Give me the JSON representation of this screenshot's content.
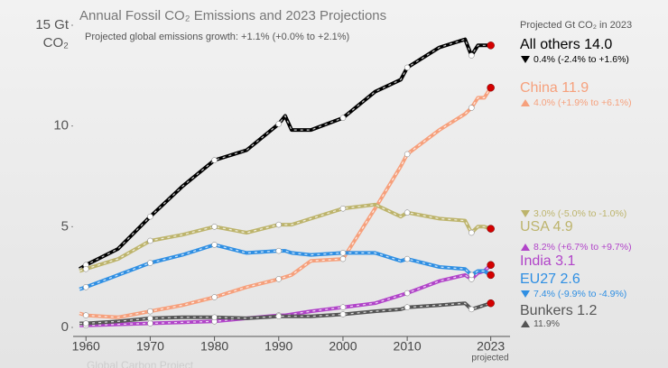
{
  "chart_data": {
    "type": "line",
    "title": "Annual Fossil CO₂ Emissions and 2023 Projections",
    "subtitle": "Projected global emissions growth: +1.1% (+0.0% to +2.1%)",
    "y_unit": "CO₂",
    "legend_title": "Projected Gt CO₂ in 2023",
    "x_annotation": "projected",
    "source": "Global Carbon Project",
    "x": [
      1959,
      1960,
      1965,
      1970,
      1975,
      1980,
      1985,
      1990,
      1991,
      1992,
      1995,
      2000,
      2005,
      2009,
      2010,
      2015,
      2019,
      2020,
      2021,
      2022,
      2023
    ],
    "xlim": [
      1958,
      2026
    ],
    "xticks": [
      1960,
      1970,
      1980,
      1990,
      2000,
      2010,
      2023
    ],
    "ylim": [
      0,
      15
    ],
    "yticks": [
      0,
      5,
      10,
      {
        "value": 15,
        "label": "15 Gt"
      }
    ],
    "grid": false,
    "projection_color": "#d40000",
    "series": [
      {
        "name": "All others",
        "label": "All others 14.0",
        "growth": "0.4% (-2.4% to +1.6%)",
        "trend": "down",
        "color": "#000000",
        "values": [
          2.9,
          3.1,
          3.9,
          5.5,
          7.0,
          8.3,
          8.8,
          10.1,
          10.5,
          9.8,
          9.8,
          10.4,
          11.7,
          12.3,
          12.9,
          13.9,
          14.3,
          13.5,
          14.0,
          14.0,
          14.0
        ]
      },
      {
        "name": "China",
        "label": "China 11.9",
        "growth": "4.0% (+1.9% to +6.1%)",
        "trend": "up",
        "color": "#f6a07c",
        "values": [
          0.7,
          0.6,
          0.5,
          0.8,
          1.1,
          1.5,
          2.0,
          2.4,
          2.5,
          2.6,
          3.3,
          3.4,
          5.9,
          8.0,
          8.6,
          9.8,
          10.6,
          10.9,
          11.4,
          11.4,
          11.9
        ]
      },
      {
        "name": "USA",
        "label": "USA 4.9",
        "growth": "3.0% (-5.0% to -1.0%)",
        "trend": "down",
        "color": "#bdb46c",
        "values": [
          2.8,
          2.9,
          3.4,
          4.3,
          4.6,
          5.0,
          4.7,
          5.1,
          5.1,
          5.1,
          5.4,
          5.9,
          6.1,
          5.5,
          5.7,
          5.4,
          5.3,
          4.7,
          5.0,
          5.0,
          4.9
        ]
      },
      {
        "name": "India",
        "label": "India 3.1",
        "growth": "8.2% (+6.7% to +9.7%)",
        "trend": "up",
        "color": "#b144c9",
        "values": [
          0.1,
          0.1,
          0.15,
          0.2,
          0.25,
          0.3,
          0.45,
          0.6,
          0.6,
          0.65,
          0.8,
          1.0,
          1.2,
          1.6,
          1.7,
          2.3,
          2.6,
          2.4,
          2.7,
          2.8,
          3.1
        ]
      },
      {
        "name": "EU27",
        "label": "EU27 2.6",
        "growth": "7.4% (-9.9% to -4.9%)",
        "trend": "down",
        "color": "#2f8fe3",
        "values": [
          1.9,
          2.0,
          2.6,
          3.2,
          3.6,
          4.1,
          3.7,
          3.8,
          3.8,
          3.7,
          3.6,
          3.7,
          3.7,
          3.3,
          3.4,
          3.0,
          2.9,
          2.6,
          2.8,
          2.8,
          2.6
        ]
      },
      {
        "name": "Bunkers",
        "label": "Bunkers 1.2",
        "growth": "11.9%",
        "trend": "up",
        "color": "#555555",
        "values": [
          0.2,
          0.2,
          0.3,
          0.45,
          0.5,
          0.5,
          0.45,
          0.55,
          0.55,
          0.55,
          0.55,
          0.65,
          0.8,
          0.9,
          1.0,
          1.1,
          1.2,
          0.9,
          1.0,
          1.1,
          1.2
        ]
      }
    ]
  }
}
